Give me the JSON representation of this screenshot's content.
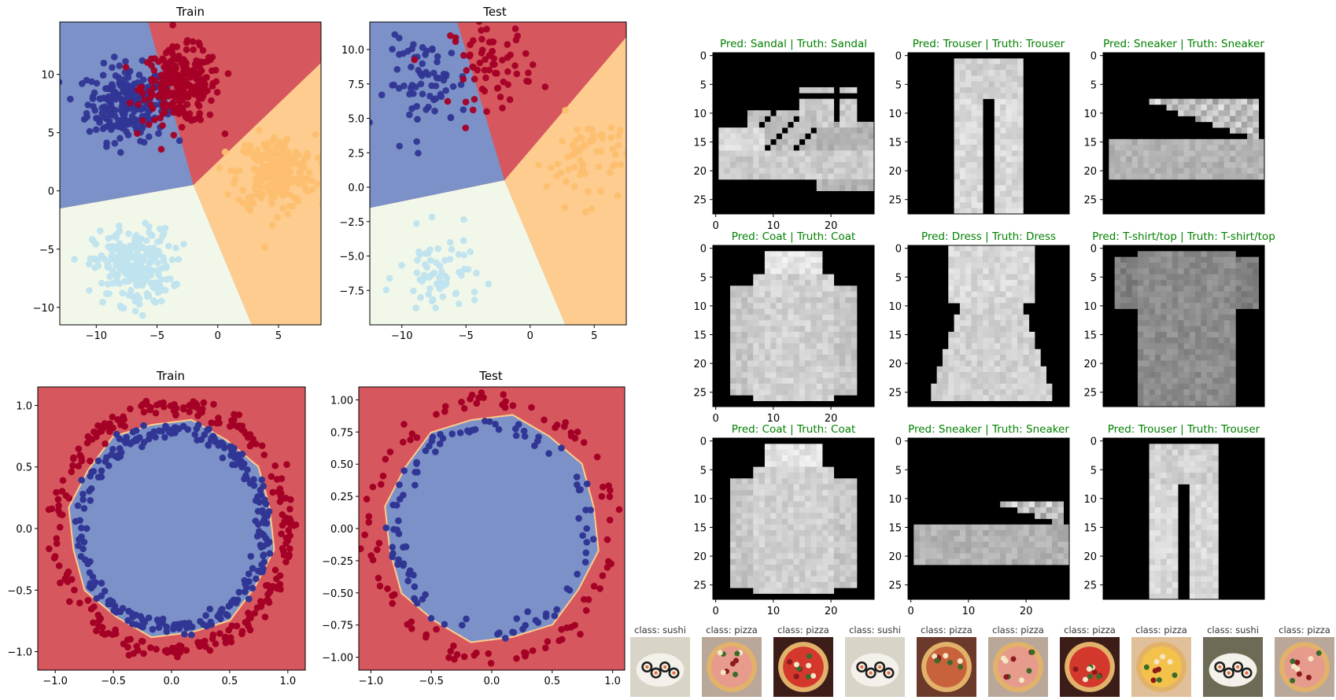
{
  "colors": {
    "region_blue": "#7b91c7",
    "region_red": "#d6585e",
    "region_orange": "#fdcc8e",
    "region_green": "#f1f8e9",
    "dot_blue": "#313695",
    "dot_red": "#a50026",
    "dot_orange": "#fdbf6f",
    "dot_lightblue": "#bfe3ee",
    "pred_correct": "#008000"
  },
  "blob_charts": [
    {
      "title": "Train",
      "type": "scatter",
      "xticks": [
        -10,
        -5,
        0,
        5
      ],
      "yticks": [
        -10,
        -5,
        0,
        5,
        10
      ],
      "tick_labels_x": [
        "−10",
        "−5",
        "0",
        "5"
      ],
      "tick_labels_y": [
        "−10",
        "−5",
        "0",
        "5",
        "10"
      ]
    },
    {
      "title": "Test",
      "type": "scatter",
      "xticks": [
        -10,
        -5,
        0,
        5
      ],
      "yticks": [
        -7.5,
        -5.0,
        -2.5,
        0.0,
        2.5,
        5.0,
        7.5,
        10.0
      ],
      "tick_labels_x": [
        "−10",
        "−5",
        "0",
        "5"
      ],
      "tick_labels_y": [
        "−7.5",
        "−5.0",
        "−2.5",
        "0.0",
        "2.5",
        "5.0",
        "7.5",
        "10.0"
      ]
    }
  ],
  "circle_charts": [
    {
      "title": "Train",
      "type": "scatter",
      "tick_labels_x": [
        "−1.0",
        "−0.5",
        "0.0",
        "0.5",
        "1.0"
      ],
      "tick_labels_y": [
        "−1.0",
        "−0.5",
        "0.0",
        "0.5",
        "1.0"
      ]
    },
    {
      "title": "Test",
      "type": "scatter",
      "tick_labels_x": [
        "−1.0",
        "−0.5",
        "0.0",
        "0.5",
        "1.0"
      ],
      "tick_labels_y": [
        "−1.00",
        "−0.75",
        "−0.50",
        "−0.25",
        "0.00",
        "0.25",
        "0.50",
        "0.75",
        "1.00"
      ]
    }
  ],
  "chart_data": [
    {
      "type": "scatter",
      "title": "Train",
      "xlim": [
        -13,
        8.5
      ],
      "ylim": [
        -11.5,
        14.5
      ],
      "series": [
        {
          "name": "",
          "center": [
            -7.5,
            7.5
          ],
          "color": "dot_blue"
        },
        {
          "name": "",
          "center": [
            -3,
            9
          ],
          "color": "dot_red"
        },
        {
          "name": "",
          "center": [
            4.8,
            1.6
          ],
          "color": "dot_orange"
        },
        {
          "name": "",
          "center": [
            -7,
            -6.5
          ],
          "color": "dot_lightblue"
        }
      ]
    },
    {
      "type": "scatter",
      "title": "Test",
      "xlim": [
        -12.5,
        7.5
      ],
      "ylim": [
        -10,
        12
      ],
      "series": [
        {
          "name": "",
          "center": [
            -8,
            7.5
          ],
          "color": "dot_blue"
        },
        {
          "name": "",
          "center": [
            -3,
            9
          ],
          "color": "dot_red"
        },
        {
          "name": "",
          "center": [
            4.5,
            2
          ],
          "color": "dot_orange"
        },
        {
          "name": "",
          "center": [
            -7,
            -6.5
          ],
          "color": "dot_lightblue"
        }
      ]
    },
    {
      "type": "scatter",
      "title": "Train",
      "xlim": [
        -1.15,
        1.15
      ],
      "ylim": [
        -1.15,
        1.15
      ],
      "series": [
        {
          "name": "",
          "radius": 1.0,
          "color": "dot_red"
        },
        {
          "name": "",
          "radius": 0.8,
          "color": "dot_blue"
        }
      ]
    },
    {
      "type": "scatter",
      "title": "Test",
      "xlim": [
        -1.1,
        1.1
      ],
      "ylim": [
        -1.1,
        1.1
      ],
      "series": [
        {
          "name": "",
          "radius": 1.0,
          "color": "dot_red"
        },
        {
          "name": "",
          "radius": 0.8,
          "color": "dot_blue"
        }
      ]
    }
  ],
  "fashion": {
    "axis_ticks": [
      "0",
      "5",
      "10",
      "15",
      "20",
      "25"
    ],
    "x_ticks": [
      "0",
      "10",
      "20"
    ],
    "items": [
      {
        "title": "Pred: Sandal | Truth: Sandal",
        "shape": "sandal",
        "show_x": true
      },
      {
        "title": "Pred: Trouser | Truth: Trouser",
        "shape": "trouser",
        "show_x": false
      },
      {
        "title": "Pred: Sneaker | Truth: Sneaker",
        "shape": "sneaker",
        "show_x": false
      },
      {
        "title": "Pred: Coat | Truth: Coat",
        "shape": "coat",
        "show_x": true
      },
      {
        "title": "Pred: Dress | Truth: Dress",
        "shape": "dress",
        "show_x": false
      },
      {
        "title": "Pred: T-shirt/top | Truth: T-shirt/top",
        "shape": "tshirt",
        "show_x": false
      },
      {
        "title": "Pred: Coat | Truth: Coat",
        "shape": "coat2",
        "show_x": true
      },
      {
        "title": "Pred: Sneaker | Truth: Sneaker",
        "shape": "sneaker2",
        "show_x": true
      },
      {
        "title": "Pred: Trouser | Truth: Trouser",
        "shape": "trouser2",
        "show_x": false
      }
    ]
  },
  "food": [
    {
      "label": "class: sushi",
      "kind": "sushi"
    },
    {
      "label": "class: pizza",
      "kind": "pizza"
    },
    {
      "label": "class: pizza",
      "kind": "pizza"
    },
    {
      "label": "class: sushi",
      "kind": "sushi"
    },
    {
      "label": "class: pizza",
      "kind": "pizza"
    },
    {
      "label": "class: pizza",
      "kind": "pizza"
    },
    {
      "label": "class: pizza",
      "kind": "pizza"
    },
    {
      "label": "class: pizza",
      "kind": "pizza"
    },
    {
      "label": "class: sushi",
      "kind": "sushi"
    },
    {
      "label": "class: pizza",
      "kind": "pizza"
    }
  ]
}
